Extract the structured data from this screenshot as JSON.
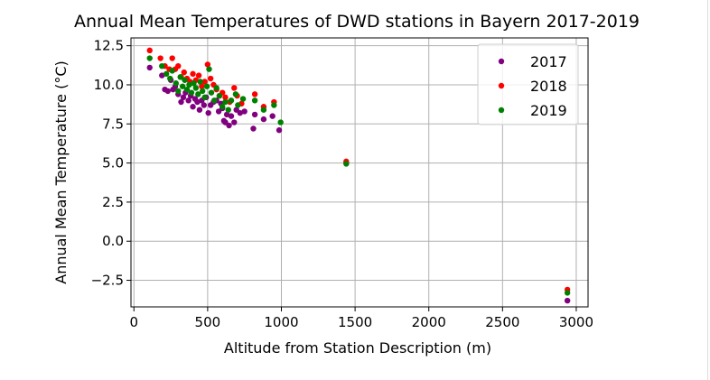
{
  "chart_data": {
    "type": "scatter",
    "title": "Annual Mean Temperatures of DWD stations in Bayern 2017-2019",
    "xlabel": "Altitude from Station Description (m)",
    "ylabel": "Annual Mean Temperature (°C)",
    "xlim": [
      -20,
      3080
    ],
    "ylim": [
      -4.2,
      13.0
    ],
    "xticks": [
      0,
      500,
      1000,
      1500,
      2000,
      2500,
      3000
    ],
    "yticks": [
      -2.5,
      0.0,
      2.5,
      5.0,
      7.5,
      10.0,
      12.5
    ],
    "xtick_labels": [
      "0",
      "500",
      "1000",
      "1500",
      "2000",
      "2500",
      "3000"
    ],
    "ytick_labels": [
      "−2.5",
      "0.0",
      "2.5",
      "5.0",
      "7.5",
      "10.0",
      "12.5"
    ],
    "grid": true,
    "legend_position": "top-right",
    "series": [
      {
        "name": "2017",
        "color": "#800080",
        "points": [
          [
            107,
            11.1
          ],
          [
            190,
            10.6
          ],
          [
            210,
            9.7
          ],
          [
            230,
            9.6
          ],
          [
            250,
            10.3
          ],
          [
            265,
            9.7
          ],
          [
            280,
            9.9
          ],
          [
            300,
            9.4
          ],
          [
            320,
            8.9
          ],
          [
            335,
            9.2
          ],
          [
            350,
            9.5
          ],
          [
            370,
            9.0
          ],
          [
            385,
            9.3
          ],
          [
            400,
            8.6
          ],
          [
            415,
            9.1
          ],
          [
            430,
            8.9
          ],
          [
            445,
            8.4
          ],
          [
            460,
            9.0
          ],
          [
            475,
            8.7
          ],
          [
            490,
            9.2
          ],
          [
            505,
            8.2
          ],
          [
            520,
            8.7
          ],
          [
            540,
            8.9
          ],
          [
            560,
            9.0
          ],
          [
            575,
            8.3
          ],
          [
            590,
            8.8
          ],
          [
            600,
            8.5
          ],
          [
            610,
            7.7
          ],
          [
            620,
            7.6
          ],
          [
            630,
            8.1
          ],
          [
            645,
            7.4
          ],
          [
            660,
            8.0
          ],
          [
            680,
            7.6
          ],
          [
            695,
            8.4
          ],
          [
            720,
            8.2
          ],
          [
            750,
            8.3
          ],
          [
            810,
            7.2
          ],
          [
            820,
            8.1
          ],
          [
            880,
            7.8
          ],
          [
            940,
            8.0
          ],
          [
            985,
            7.1
          ],
          [
            1440,
            5.0
          ],
          [
            2940,
            -3.8
          ]
        ]
      },
      {
        "name": "2018",
        "color": "#ff0000",
        "points": [
          [
            107,
            12.2
          ],
          [
            180,
            11.7
          ],
          [
            210,
            11.2
          ],
          [
            240,
            11.0
          ],
          [
            260,
            11.7
          ],
          [
            280,
            11.0
          ],
          [
            300,
            11.2
          ],
          [
            320,
            10.5
          ],
          [
            340,
            10.8
          ],
          [
            360,
            10.4
          ],
          [
            380,
            10.2
          ],
          [
            400,
            10.7
          ],
          [
            420,
            10.3
          ],
          [
            440,
            10.6
          ],
          [
            460,
            9.9
          ],
          [
            480,
            10.2
          ],
          [
            500,
            11.3
          ],
          [
            520,
            10.4
          ],
          [
            540,
            10.0
          ],
          [
            560,
            9.7
          ],
          [
            580,
            9.3
          ],
          [
            600,
            9.5
          ],
          [
            620,
            9.2
          ],
          [
            650,
            8.9
          ],
          [
            680,
            9.8
          ],
          [
            700,
            9.3
          ],
          [
            730,
            8.8
          ],
          [
            820,
            9.4
          ],
          [
            880,
            8.6
          ],
          [
            950,
            8.9
          ],
          [
            1440,
            5.1
          ],
          [
            2940,
            -3.1
          ]
        ]
      },
      {
        "name": "2019",
        "color": "#008000",
        "points": [
          [
            107,
            11.7
          ],
          [
            190,
            11.2
          ],
          [
            220,
            10.7
          ],
          [
            245,
            10.4
          ],
          [
            260,
            10.9
          ],
          [
            285,
            10.1
          ],
          [
            300,
            9.6
          ],
          [
            315,
            10.5
          ],
          [
            330,
            9.9
          ],
          [
            345,
            10.3
          ],
          [
            360,
            9.7
          ],
          [
            375,
            10.0
          ],
          [
            390,
            9.5
          ],
          [
            405,
            10.1
          ],
          [
            420,
            9.8
          ],
          [
            435,
            9.4
          ],
          [
            450,
            10.2
          ],
          [
            465,
            9.6
          ],
          [
            480,
            9.2
          ],
          [
            495,
            9.9
          ],
          [
            510,
            11.0
          ],
          [
            525,
            9.5
          ],
          [
            545,
            9.0
          ],
          [
            560,
            9.8
          ],
          [
            580,
            9.3
          ],
          [
            600,
            8.6
          ],
          [
            620,
            8.9
          ],
          [
            640,
            8.4
          ],
          [
            660,
            9.0
          ],
          [
            690,
            9.4
          ],
          [
            705,
            8.7
          ],
          [
            740,
            9.1
          ],
          [
            820,
            9.0
          ],
          [
            880,
            8.4
          ],
          [
            950,
            8.7
          ],
          [
            995,
            7.6
          ],
          [
            1440,
            4.95
          ],
          [
            2940,
            -3.3
          ]
        ]
      }
    ]
  }
}
